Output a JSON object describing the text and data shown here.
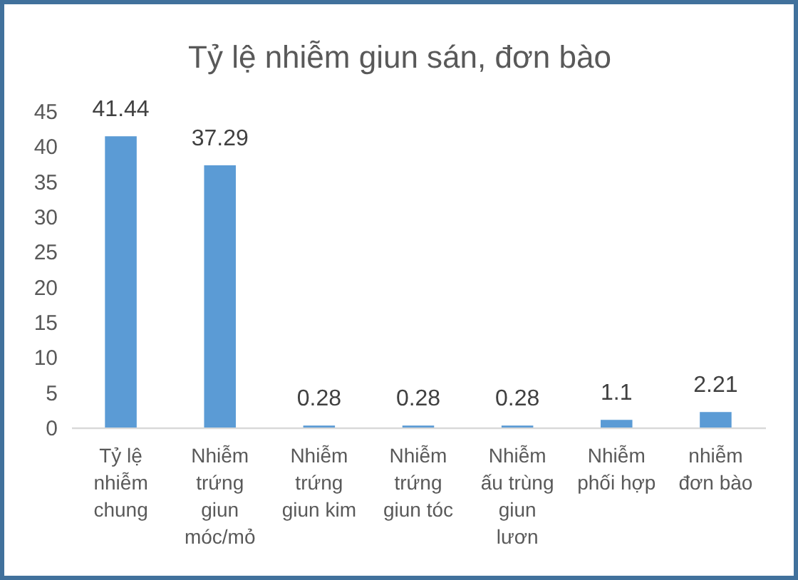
{
  "chart_data": {
    "type": "bar",
    "title": "Tỷ lệ nhiễm giun sán, đơn bào",
    "categories": [
      "Tỷ lệ nhiễm chung",
      "Nhiễm trứng giun móc/mỏ",
      "Nhiễm trứng giun kim",
      "Nhiễm trứng giun tóc",
      "Nhiễm ấu trùng giun lươn",
      "Nhiễm phối hợp",
      "nhiễm đơn bào"
    ],
    "values": [
      41.44,
      37.29,
      0.28,
      0.28,
      0.28,
      1.1,
      2.21
    ],
    "color": "#5b9bd5",
    "ylim": [
      0,
      45
    ],
    "yticks": [
      0,
      5,
      10,
      15,
      20,
      25,
      30,
      35,
      40,
      45
    ],
    "data_labels": true
  }
}
